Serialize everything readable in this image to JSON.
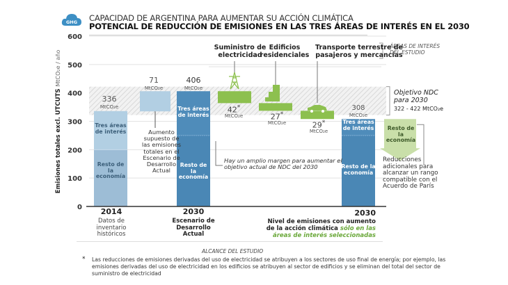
{
  "header": {
    "badge": "GHG",
    "title": "CAPACIDAD DE ARGENTINA PARA AUMENTAR SU ACCIÓN CLIMÁTICA",
    "subtitle": "POTENCIAL DE REDUCCIÓN DE EMISIONES EN LAS TRES ÁREAS DE INTERÉS EN EL 2030"
  },
  "chart_data": {
    "type": "bar",
    "subtype": "waterfall",
    "title": "POTENCIAL DE REDUCCIÓN DE EMISIONES EN LAS TRES ÁREAS DE INTERÉS EN EL 2030",
    "ylabel": "Emisiones totales excl. UTCUTS",
    "ylabel_unit": "MtCO₂e / año",
    "ylim": [
      0,
      600
    ],
    "yticks": [
      0,
      100,
      200,
      300,
      400,
      500,
      600
    ],
    "grid": true,
    "unit": "MtCO₂e",
    "ndc_band": {
      "low": 322,
      "high": 422,
      "label": "Objetivo NDC para 2030",
      "range_label": "322 - 422  MtCO₂e"
    },
    "bars": [
      {
        "id": "2014",
        "value": 336,
        "value_label": "336",
        "base": 0,
        "color": "#a9c8de",
        "segments": [
          {
            "label": "Resto de la economía",
            "from": 0,
            "to": 200,
            "color": "#9dbdd6"
          },
          {
            "label": "Tres áreas de interés",
            "from": 200,
            "to": 336,
            "color": "#b2cfe3"
          }
        ]
      },
      {
        "id": "increase",
        "value": 71,
        "value_label": "71",
        "base": 335,
        "top": 406,
        "color": "#b2cfe3",
        "note": "Aumento supuesto de las emisiones totales en el Escenario de Desarrollo Actual"
      },
      {
        "id": "2030-bau",
        "value": 406,
        "value_label": "406",
        "base": 0,
        "color": "#4a87b5",
        "segments": [
          {
            "label": "Resto de la economía",
            "from": 0,
            "to": 250,
            "color": "#4a87b5"
          },
          {
            "label": "Tres áreas de interés",
            "from": 250,
            "to": 406,
            "color": "#4f8cba"
          }
        ]
      },
      {
        "id": "electricity",
        "value": 42,
        "value_label": "42",
        "asterisk": true,
        "top": 406,
        "base": 364,
        "color": "#8dc04f",
        "category": "Suministro de electricidad",
        "icon": "power-tower-icon"
      },
      {
        "id": "buildings",
        "value": 27,
        "value_label": "27",
        "asterisk": true,
        "top": 364,
        "base": 337,
        "color": "#8dc04f",
        "category": "Edificios residenciales",
        "icon": "buildings-icon"
      },
      {
        "id": "transport",
        "value": 29,
        "value_label": "29",
        "asterisk": true,
        "top": 337,
        "base": 308,
        "color": "#8dc04f",
        "category": "Transporte terrestre de pasajeros y mercancías",
        "icon": "car-icon"
      },
      {
        "id": "2030-action",
        "value": 308,
        "value_label": "308",
        "base": 0,
        "color": "#4a87b5",
        "segments": [
          {
            "label": "Resto de la economía",
            "from": 0,
            "to": 250,
            "color": "#4a87b5"
          },
          {
            "label": "Tres áreas de interés",
            "from": 250,
            "to": 308,
            "color": "#4f8cba"
          }
        ]
      }
    ],
    "extra_reduction": {
      "label": "Resto de la economía",
      "color": "#c3dba0",
      "note": "Reducciones adicionales para alcanzar un rango compatible con el Acuerdo de París"
    },
    "x_groups": [
      {
        "year": "2014",
        "desc": "Datos de inventario históricos"
      },
      {
        "year": "2030",
        "desc": "Escenario de Desarrollo Actual"
      },
      {
        "year": "2030",
        "desc": "Nivel de emisiones con aumento de la acción climática",
        "desc_highlight": "sólo en las áreas de interés seleccionadas"
      }
    ],
    "annotations": {
      "areas_label": "ÁREAS DE INTERÉS DEL ESTUDIO",
      "margin_note": "Hay un amplio margen para aumentar el objetivo actual de NDC del 2030",
      "scope_label": "ALCANCE DEL ESTUDIO"
    }
  },
  "labels": {
    "unit": "MtCO₂e",
    "tres": "Tres áreas de interés",
    "tres_short": "Tres áreas de interés",
    "resto": "Resto de la economía",
    "asterisk": "*"
  },
  "footnote": {
    "marker": "*",
    "text": "Las reducciones de emisiones derivadas del uso de electricidad se atribuyen a los sectores de uso final de energía; por ejemplo, las emisiones derivadas del uso de electricidad en los edificios se atribuyen al sector de edificios y se eliminan del total del sector de suministro de electricidad"
  },
  "colors": {
    "light_blue": "#b2cfe3",
    "dark_blue": "#4a87b5",
    "green": "#8dc04f",
    "pale_green": "#c3dba0",
    "highlight_green": "#6aa83a"
  }
}
